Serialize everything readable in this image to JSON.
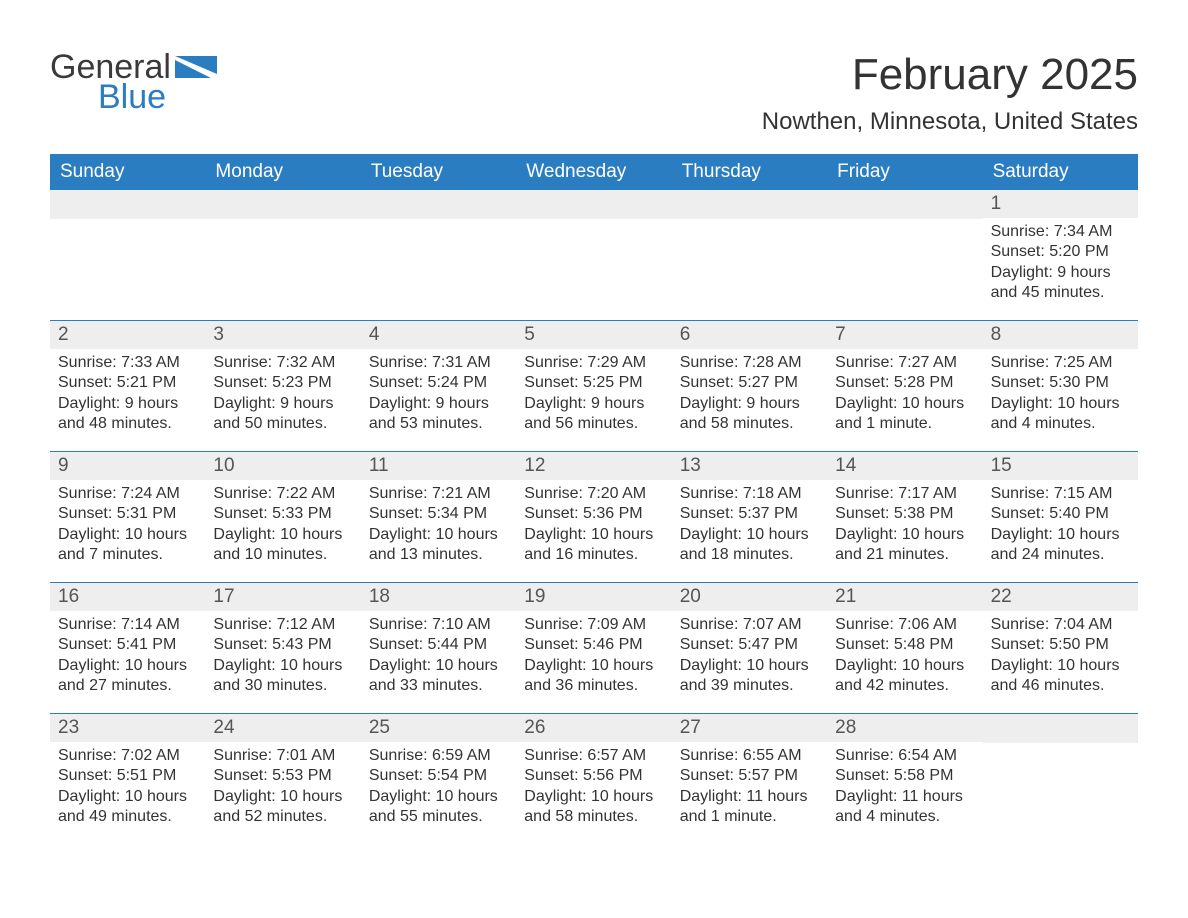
{
  "logo": {
    "word1": "General",
    "word2": "Blue"
  },
  "title": "February 2025",
  "location": "Nowthen, Minnesota, United States",
  "colors": {
    "header_bg": "#2a7dc0",
    "header_text": "#ffffff",
    "band_bg": "#eeeeee",
    "text": "#333333",
    "rule": "#2a7dc0",
    "page_bg": "#ffffff"
  },
  "typography": {
    "title_fontsize": 44,
    "location_fontsize": 24,
    "dayheader_fontsize": 19,
    "daynum_fontsize": 19,
    "body_fontsize": 16
  },
  "calendar": {
    "type": "table",
    "day_names": [
      "Sunday",
      "Monday",
      "Tuesday",
      "Wednesday",
      "Thursday",
      "Friday",
      "Saturday"
    ],
    "weeks": [
      [
        null,
        null,
        null,
        null,
        null,
        null,
        {
          "n": "1",
          "sunrise": "Sunrise: 7:34 AM",
          "sunset": "Sunset: 5:20 PM",
          "daylight": "Daylight: 9 hours and 45 minutes."
        }
      ],
      [
        {
          "n": "2",
          "sunrise": "Sunrise: 7:33 AM",
          "sunset": "Sunset: 5:21 PM",
          "daylight": "Daylight: 9 hours and 48 minutes."
        },
        {
          "n": "3",
          "sunrise": "Sunrise: 7:32 AM",
          "sunset": "Sunset: 5:23 PM",
          "daylight": "Daylight: 9 hours and 50 minutes."
        },
        {
          "n": "4",
          "sunrise": "Sunrise: 7:31 AM",
          "sunset": "Sunset: 5:24 PM",
          "daylight": "Daylight: 9 hours and 53 minutes."
        },
        {
          "n": "5",
          "sunrise": "Sunrise: 7:29 AM",
          "sunset": "Sunset: 5:25 PM",
          "daylight": "Daylight: 9 hours and 56 minutes."
        },
        {
          "n": "6",
          "sunrise": "Sunrise: 7:28 AM",
          "sunset": "Sunset: 5:27 PM",
          "daylight": "Daylight: 9 hours and 58 minutes."
        },
        {
          "n": "7",
          "sunrise": "Sunrise: 7:27 AM",
          "sunset": "Sunset: 5:28 PM",
          "daylight": "Daylight: 10 hours and 1 minute."
        },
        {
          "n": "8",
          "sunrise": "Sunrise: 7:25 AM",
          "sunset": "Sunset: 5:30 PM",
          "daylight": "Daylight: 10 hours and 4 minutes."
        }
      ],
      [
        {
          "n": "9",
          "sunrise": "Sunrise: 7:24 AM",
          "sunset": "Sunset: 5:31 PM",
          "daylight": "Daylight: 10 hours and 7 minutes."
        },
        {
          "n": "10",
          "sunrise": "Sunrise: 7:22 AM",
          "sunset": "Sunset: 5:33 PM",
          "daylight": "Daylight: 10 hours and 10 minutes."
        },
        {
          "n": "11",
          "sunrise": "Sunrise: 7:21 AM",
          "sunset": "Sunset: 5:34 PM",
          "daylight": "Daylight: 10 hours and 13 minutes."
        },
        {
          "n": "12",
          "sunrise": "Sunrise: 7:20 AM",
          "sunset": "Sunset: 5:36 PM",
          "daylight": "Daylight: 10 hours and 16 minutes."
        },
        {
          "n": "13",
          "sunrise": "Sunrise: 7:18 AM",
          "sunset": "Sunset: 5:37 PM",
          "daylight": "Daylight: 10 hours and 18 minutes."
        },
        {
          "n": "14",
          "sunrise": "Sunrise: 7:17 AM",
          "sunset": "Sunset: 5:38 PM",
          "daylight": "Daylight: 10 hours and 21 minutes."
        },
        {
          "n": "15",
          "sunrise": "Sunrise: 7:15 AM",
          "sunset": "Sunset: 5:40 PM",
          "daylight": "Daylight: 10 hours and 24 minutes."
        }
      ],
      [
        {
          "n": "16",
          "sunrise": "Sunrise: 7:14 AM",
          "sunset": "Sunset: 5:41 PM",
          "daylight": "Daylight: 10 hours and 27 minutes."
        },
        {
          "n": "17",
          "sunrise": "Sunrise: 7:12 AM",
          "sunset": "Sunset: 5:43 PM",
          "daylight": "Daylight: 10 hours and 30 minutes."
        },
        {
          "n": "18",
          "sunrise": "Sunrise: 7:10 AM",
          "sunset": "Sunset: 5:44 PM",
          "daylight": "Daylight: 10 hours and 33 minutes."
        },
        {
          "n": "19",
          "sunrise": "Sunrise: 7:09 AM",
          "sunset": "Sunset: 5:46 PM",
          "daylight": "Daylight: 10 hours and 36 minutes."
        },
        {
          "n": "20",
          "sunrise": "Sunrise: 7:07 AM",
          "sunset": "Sunset: 5:47 PM",
          "daylight": "Daylight: 10 hours and 39 minutes."
        },
        {
          "n": "21",
          "sunrise": "Sunrise: 7:06 AM",
          "sunset": "Sunset: 5:48 PM",
          "daylight": "Daylight: 10 hours and 42 minutes."
        },
        {
          "n": "22",
          "sunrise": "Sunrise: 7:04 AM",
          "sunset": "Sunset: 5:50 PM",
          "daylight": "Daylight: 10 hours and 46 minutes."
        }
      ],
      [
        {
          "n": "23",
          "sunrise": "Sunrise: 7:02 AM",
          "sunset": "Sunset: 5:51 PM",
          "daylight": "Daylight: 10 hours and 49 minutes."
        },
        {
          "n": "24",
          "sunrise": "Sunrise: 7:01 AM",
          "sunset": "Sunset: 5:53 PM",
          "daylight": "Daylight: 10 hours and 52 minutes."
        },
        {
          "n": "25",
          "sunrise": "Sunrise: 6:59 AM",
          "sunset": "Sunset: 5:54 PM",
          "daylight": "Daylight: 10 hours and 55 minutes."
        },
        {
          "n": "26",
          "sunrise": "Sunrise: 6:57 AM",
          "sunset": "Sunset: 5:56 PM",
          "daylight": "Daylight: 10 hours and 58 minutes."
        },
        {
          "n": "27",
          "sunrise": "Sunrise: 6:55 AM",
          "sunset": "Sunset: 5:57 PM",
          "daylight": "Daylight: 11 hours and 1 minute."
        },
        {
          "n": "28",
          "sunrise": "Sunrise: 6:54 AM",
          "sunset": "Sunset: 5:58 PM",
          "daylight": "Daylight: 11 hours and 4 minutes."
        },
        null
      ]
    ]
  }
}
